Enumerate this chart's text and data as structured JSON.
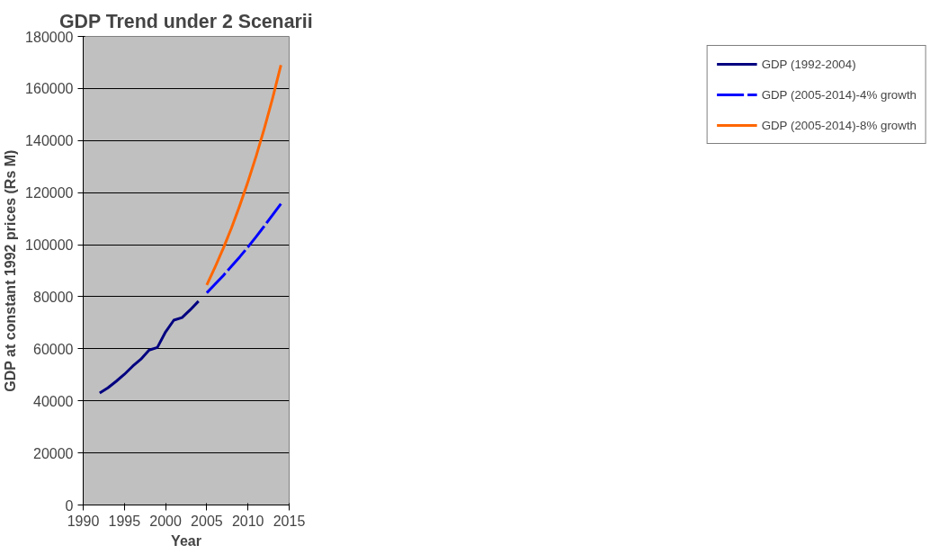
{
  "chart_data": {
    "type": "line",
    "title": "GDP Trend under 2 Scenarii",
    "xlabel": "Year",
    "ylabel": "GDP at constant 1992 prices (Rs M)",
    "xlim": [
      1990,
      2015
    ],
    "xticks": [
      1990,
      1995,
      2000,
      2005,
      2010,
      2015
    ],
    "ylim": [
      0,
      180000
    ],
    "yticks": [
      0,
      20000,
      40000,
      60000,
      80000,
      100000,
      120000,
      140000,
      160000,
      180000
    ],
    "grid": "y",
    "legend": "right",
    "series": [
      {
        "name": "GDP (1992-2004)",
        "color": "#000080",
        "line_style": "solid",
        "x": [
          1992,
          1993,
          1994,
          1995,
          1996,
          1997,
          1998,
          1999,
          2000,
          2001,
          2002,
          2003,
          2004
        ],
        "values": [
          43000,
          45000,
          47500,
          50200,
          53300,
          56000,
          59500,
          60500,
          66500,
          71000,
          72000,
          75000,
          78300
        ]
      },
      {
        "name": "GDP (2005-2014)-4% growth",
        "color": "#0000ff",
        "line_style": "dashed",
        "x": [
          2005,
          2006,
          2007,
          2008,
          2009,
          2010,
          2011,
          2012,
          2013,
          2014
        ],
        "values": [
          81500,
          84800,
          88100,
          91700,
          95300,
          99100,
          103100,
          107200,
          111500,
          115700
        ]
      },
      {
        "name": "GDP (2005-2014)-8% growth",
        "color": "#ff6600",
        "line_style": "solid",
        "x": [
          2005,
          2006,
          2007,
          2008,
          2009,
          2010,
          2011,
          2012,
          2013,
          2014
        ],
        "values": [
          84500,
          91300,
          98600,
          106400,
          115000,
          124200,
          134100,
          144800,
          156400,
          169000
        ]
      }
    ]
  }
}
